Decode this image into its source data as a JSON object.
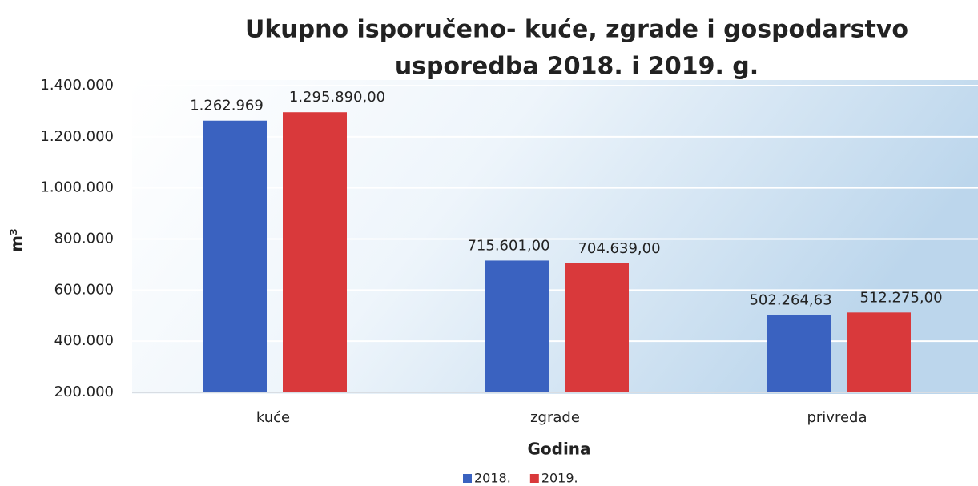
{
  "chart_data": {
    "type": "bar",
    "title": [
      "Ukupno isporučeno- kuće, zgrade i gospodarstvo",
      "usporedba 2018. i 2019. g."
    ],
    "y_label": "m³",
    "x_label": "Godina",
    "categories": [
      "kuće",
      "zgrade",
      "privreda"
    ],
    "series": [
      {
        "name": "2018.",
        "color": "#3a62c0",
        "values": [
          1262969,
          715601,
          502264.63
        ],
        "value_labels": [
          "1.262.969",
          "715.601,00",
          "502.264,63"
        ]
      },
      {
        "name": "2019.",
        "color": "#d9393b",
        "values": [
          1295890,
          704639,
          512275
        ],
        "value_labels": [
          "1.295.890,00",
          "704.639,00",
          "512.275,00"
        ]
      }
    ],
    "ylim": [
      200000,
      1400000
    ],
    "yticks": [
      {
        "value": 200000,
        "label": "200.000"
      },
      {
        "value": 400000,
        "label": "400.000"
      },
      {
        "value": 600000,
        "label": "600.000"
      },
      {
        "value": 800000,
        "label": "800.000"
      },
      {
        "value": 1000000,
        "label": "1.000.000"
      },
      {
        "value": 1200000,
        "label": "1.200.000"
      },
      {
        "value": 1400000,
        "label": "1.400.000"
      }
    ],
    "grid": true,
    "legend": "bottom"
  }
}
